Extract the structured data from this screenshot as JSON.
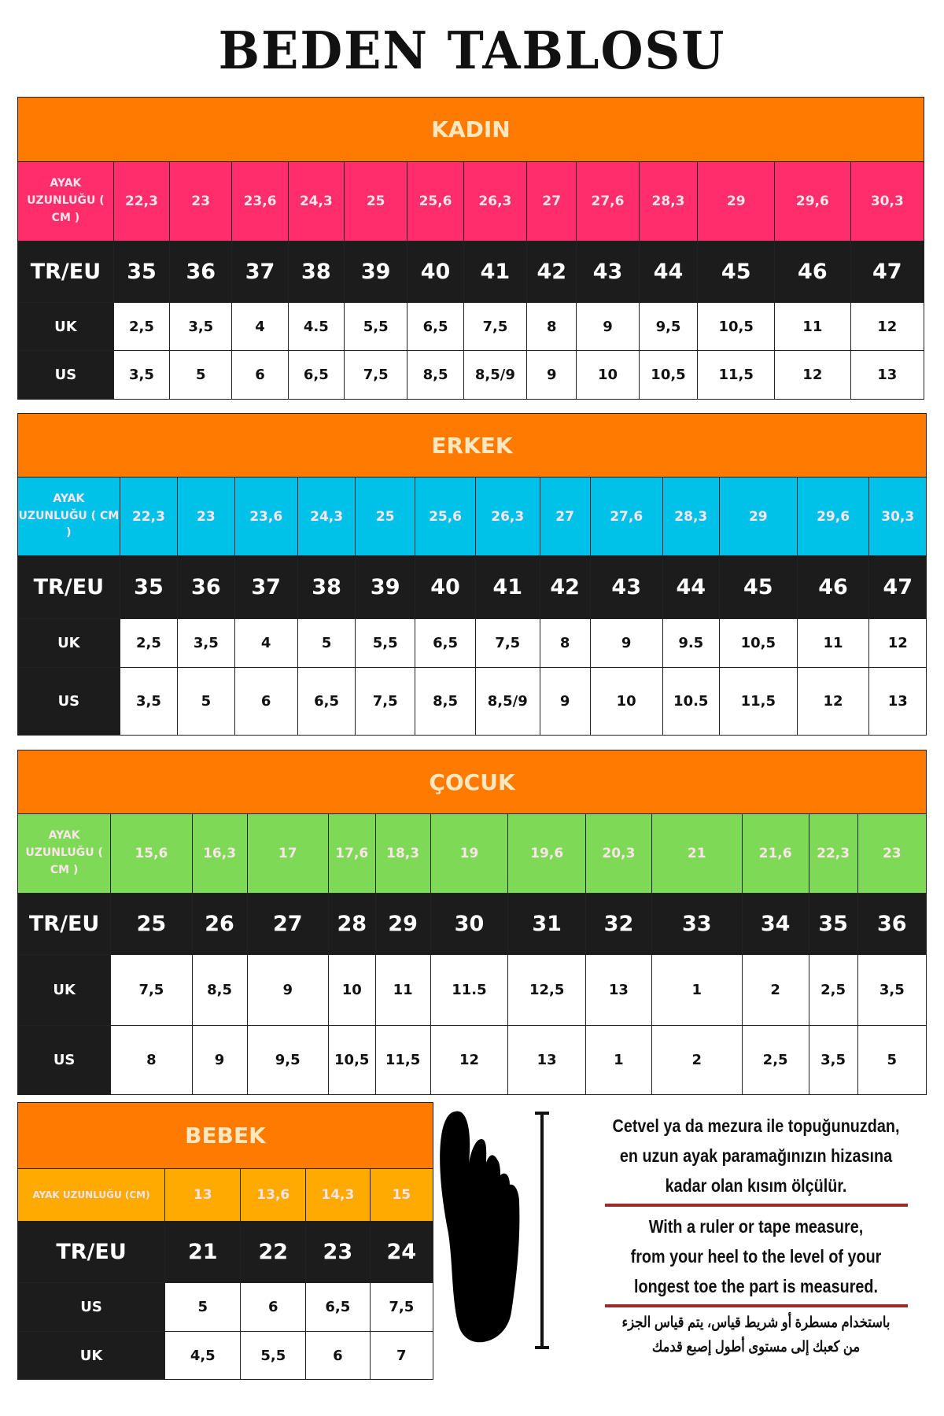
{
  "title": "BEDEN TABLOSU",
  "colors": {
    "header": "#ff7a00",
    "women": "#ff2d6b",
    "men": "#00c2e8",
    "kids": "#7ed957",
    "baby": "#ffaa00",
    "dark": "#1c1c1c"
  },
  "tables": [
    {
      "key": "kadin",
      "title": "KADIN",
      "color": "#ff2d6b",
      "rows": [
        {
          "label": "AYAK UZUNLUĞU ( CM )",
          "values": [
            "22,3",
            "23",
            "23,6",
            "24,3",
            "25",
            "25,6",
            "26,3",
            "27",
            "27,6",
            "28,3",
            "29",
            "29,6",
            "30,3"
          ]
        },
        {
          "label": "TR/EU",
          "values": [
            "35",
            "36",
            "37",
            "38",
            "39",
            "40",
            "41",
            "42",
            "43",
            "44",
            "45",
            "46",
            "47"
          ]
        },
        {
          "label": "UK",
          "values": [
            "2,5",
            "3,5",
            "4",
            "4.5",
            "5,5",
            "6,5",
            "7,5",
            "8",
            "9",
            "9,5",
            "10,5",
            "11",
            "12"
          ]
        },
        {
          "label": "US",
          "values": [
            "3,5",
            "5",
            "6",
            "6,5",
            "7,5",
            "8,5",
            "8,5/9",
            "9",
            "10",
            "10,5",
            "11,5",
            "12",
            "13"
          ]
        }
      ]
    },
    {
      "key": "erkek",
      "title": "ERKEK",
      "color": "#00c2e8",
      "rows": [
        {
          "label": "AYAK UZUNLUĞU ( CM )",
          "values": [
            "22,3",
            "23",
            "23,6",
            "24,3",
            "25",
            "25,6",
            "26,3",
            "27",
            "27,6",
            "28,3",
            "29",
            "29,6",
            "30,3"
          ]
        },
        {
          "label": "TR/EU",
          "values": [
            "35",
            "36",
            "37",
            "38",
            "39",
            "40",
            "41",
            "42",
            "43",
            "44",
            "45",
            "46",
            "47"
          ]
        },
        {
          "label": "UK",
          "values": [
            "2,5",
            "3,5",
            "4",
            "5",
            "5,5",
            "6,5",
            "7,5",
            "8",
            "9",
            "9.5",
            "10,5",
            "11",
            "12"
          ]
        },
        {
          "label": "US",
          "values": [
            "3,5",
            "5",
            "6",
            "6,5",
            "7,5",
            "8,5",
            "8,5/9",
            "9",
            "10",
            "10.5",
            "11,5",
            "12",
            "13"
          ]
        }
      ]
    },
    {
      "key": "cocuk",
      "title": "ÇOCUK",
      "color": "#7ed957",
      "rows": [
        {
          "label": "AYAK UZUNLUĞU ( CM )",
          "values": [
            "15,6",
            "16,3",
            "17",
            "17,6",
            "18,3",
            "19",
            "19,6",
            "20,3",
            "21",
            "21,6",
            "22,3",
            "23"
          ]
        },
        {
          "label": "TR/EU",
          "values": [
            "25",
            "26",
            "27",
            "28",
            "29",
            "30",
            "31",
            "32",
            "33",
            "34",
            "35",
            "36"
          ]
        },
        {
          "label": "UK",
          "values": [
            "7,5",
            "8,5",
            "9",
            "10",
            "11",
            "11.5",
            "12,5",
            "13",
            "1",
            "2",
            "2,5",
            "3,5"
          ]
        },
        {
          "label": "US",
          "values": [
            "8",
            "9",
            "9,5",
            "10,5",
            "11,5",
            "12",
            "13",
            "1",
            "2",
            "2,5",
            "3,5",
            "5"
          ]
        }
      ]
    },
    {
      "key": "bebek",
      "title": "BEBEK",
      "color": "#ffaa00",
      "rows": [
        {
          "label": "AYAK UZUNLUĞU (CM)",
          "values": [
            "13",
            "13,6",
            "14,3",
            "15"
          ]
        },
        {
          "label": "TR/EU",
          "values": [
            "21",
            "22",
            "23",
            "24"
          ]
        },
        {
          "label": "US",
          "values": [
            "5",
            "6",
            "6,5",
            "7,5"
          ]
        },
        {
          "label": "UK",
          "values": [
            "4,5",
            "5,5",
            "6",
            "7"
          ]
        }
      ]
    }
  ],
  "instructions": {
    "tr": [
      "Cetvel ya da mezura ile topuğunuzdan,",
      "en uzun ayak paramağınızın hizasına",
      "kadar olan kısım ölçülür."
    ],
    "en": [
      "With a ruler or tape measure,",
      "from your heel to the level of your",
      "longest toe the part is measured."
    ],
    "ar": [
      "باستخدام مسطرة أو شريط قياس، يتم قياس الجزء",
      "من كعبك إلى مستوى أطول إصبع قدمك"
    ]
  },
  "icons": {
    "foot": "foot-silhouette-icon",
    "ruler": "measure-bracket-icon"
  }
}
